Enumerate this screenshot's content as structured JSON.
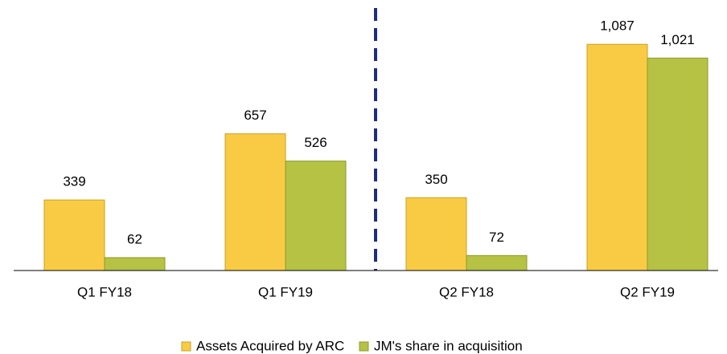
{
  "chart_data": {
    "type": "bar",
    "categories": [
      "Q1 FY18",
      "Q1 FY19",
      "Q2 FY18",
      "Q2 FY19"
    ],
    "series": [
      {
        "name": "Assets Acquired by ARC",
        "color": "#f9cb45",
        "values": [
          339,
          657,
          350,
          1087
        ],
        "value_labels": [
          "339",
          "657",
          "350",
          "1,087"
        ]
      },
      {
        "name": "JM's share in acquisition",
        "color": "#b5c244",
        "values": [
          62,
          526,
          72,
          1021
        ],
        "value_labels": [
          "62",
          "526",
          "72",
          "1,021"
        ]
      }
    ],
    "ylim": [
      0,
      1300
    ],
    "grid": false,
    "legend": "bottom"
  }
}
